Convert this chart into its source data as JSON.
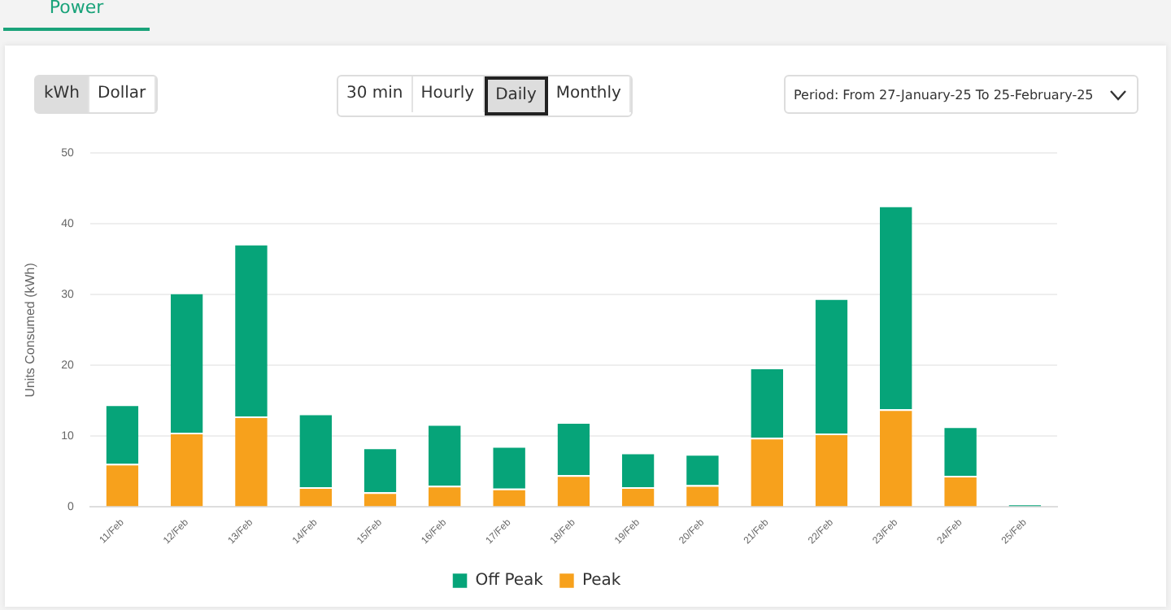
{
  "chart_data": {
    "type": "bar",
    "stacked": true,
    "ylabel": "Units Consumed (kWh)",
    "categories": [
      "11/Feb",
      "12/Feb",
      "13/Feb",
      "14/Feb",
      "15/Feb",
      "16/Feb",
      "17/Feb",
      "18/Feb",
      "19/Feb",
      "20/Feb",
      "21/Feb",
      "22/Feb",
      "23/Feb",
      "24/Feb",
      "25/Feb"
    ],
    "series": [
      {
        "name": "Peak",
        "color": "#f7a11c",
        "values": [
          6.1,
          10.5,
          12.8,
          2.8,
          2.1,
          3.0,
          2.6,
          4.5,
          2.8,
          3.1,
          9.8,
          10.4,
          13.8,
          4.4,
          0
        ]
      },
      {
        "name": "Off Peak",
        "color": "#06a479",
        "values": [
          8.4,
          19.8,
          24.4,
          10.4,
          6.3,
          8.7,
          6.0,
          7.5,
          4.9,
          4.4,
          9.9,
          19.1,
          28.8,
          7.0,
          0.4
        ]
      }
    ],
    "ylim": [
      0,
      50
    ],
    "yticks": [
      0,
      10,
      20,
      30,
      40,
      50
    ],
    "grid": "y",
    "legend": "bottom",
    "annotations": [
      "Power",
      "kWh",
      "Dollar",
      "30 min",
      "Hourly",
      "Daily",
      "Monthly",
      "Period: From 27-January-25 To 25-February-25"
    ]
  }
}
